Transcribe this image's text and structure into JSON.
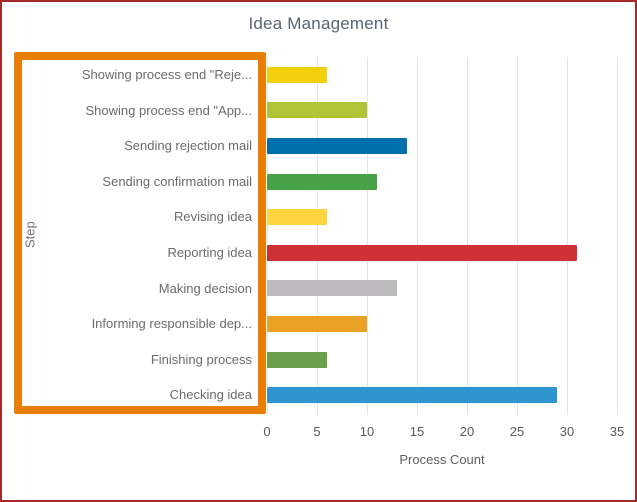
{
  "window": {
    "border_color": "#A22B2A",
    "background": "#FFFFFF"
  },
  "chart_data": {
    "type": "bar",
    "orientation": "horizontal",
    "title": "Idea Management",
    "xlabel": "Process Count",
    "ylabel": "Step",
    "xlim": [
      0,
      35
    ],
    "xticks": [
      0,
      5,
      10,
      15,
      20,
      25,
      30,
      35
    ],
    "grid": true,
    "legend": "none",
    "categories": [
      "Showing process end \"Reje...",
      "Showing process end \"App...",
      "Sending rejection mail",
      "Sending confirmation mail",
      "Revising idea",
      "Reporting idea",
      "Making decision",
      "Informing responsible dep...",
      "Finishing process",
      "Checking idea"
    ],
    "values": [
      6,
      10,
      14,
      11,
      6,
      31,
      13,
      10,
      6,
      29
    ],
    "bar_colors": [
      "#F2CE0C",
      "#B1C437",
      "#0070AC",
      "#47A147",
      "#FED53F",
      "#CE3238",
      "#BDBABD",
      "#E9A125",
      "#6C9F4B",
      "#2E95CE"
    ]
  },
  "annotation": {
    "type": "highlight-rectangle",
    "color": "#E87E04",
    "region": "y-axis-step-labels"
  },
  "styles": {
    "grid_color": "#E3E3E3",
    "title_color": "#5A6470",
    "category_label_color": "#6B6B6B",
    "tick_label_color": "#595959",
    "axis_title_color": "#5F5F5F"
  }
}
